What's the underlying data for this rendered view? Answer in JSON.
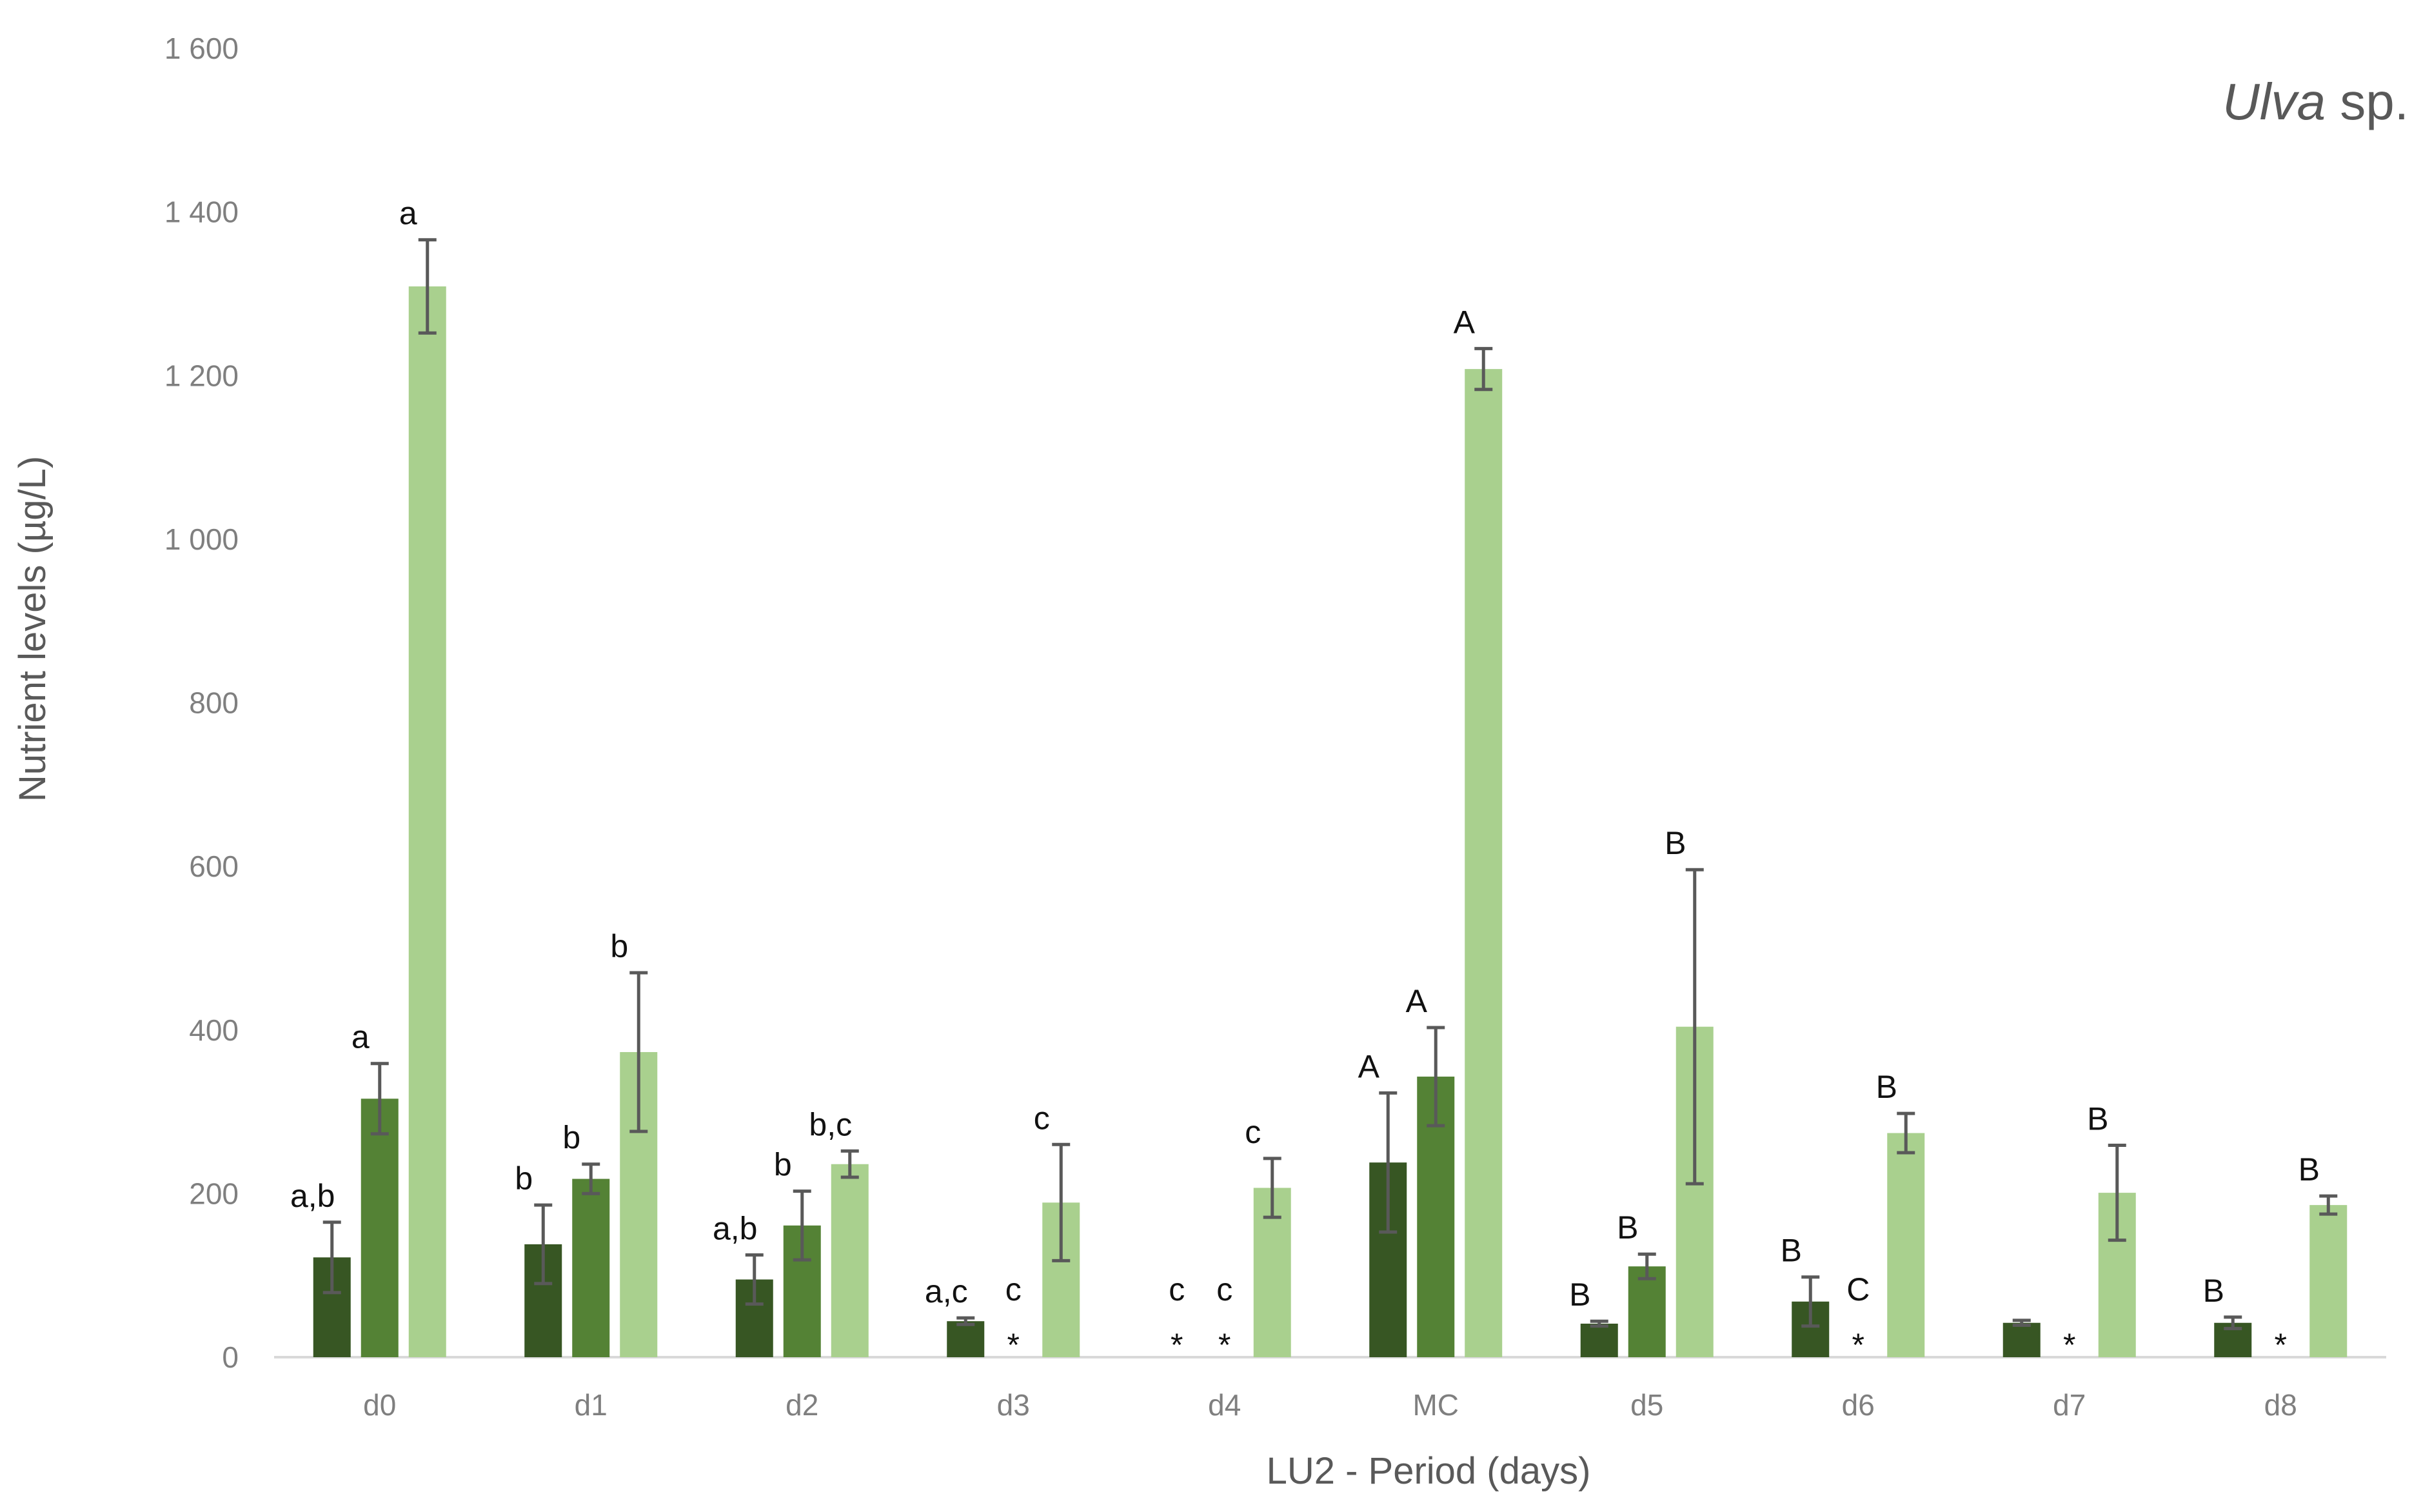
{
  "chart_data": {
    "type": "bar",
    "title_italic": "Ulva",
    "title_rest": " sp.",
    "xlabel": "LU2 - Period (days)",
    "ylabel": "Nutrient levels (µg/L)",
    "ylim": [
      0,
      1600
    ],
    "yticks": [
      {
        "value": 0,
        "label": "0"
      },
      {
        "value": 200,
        "label": "200"
      },
      {
        "value": 400,
        "label": "400"
      },
      {
        "value": 600,
        "label": "600"
      },
      {
        "value": 800,
        "label": "800"
      },
      {
        "value": 1000,
        "label": "1 000"
      },
      {
        "value": 1200,
        "label": "1 200"
      },
      {
        "value": 1400,
        "label": "1 400"
      },
      {
        "value": 1600,
        "label": "1 600"
      }
    ],
    "grid": false,
    "legend": "none",
    "categories": [
      "d0",
      "d1",
      "d2",
      "d3",
      "d4",
      "MC",
      "d5",
      "d6",
      "d7",
      "d8"
    ],
    "series": [
      {
        "color": "#375623",
        "values": [
          122,
          138,
          95,
          44,
          null,
          238,
          41,
          68,
          42,
          42
        ],
        "errors": [
          43,
          48,
          30,
          4,
          null,
          85,
          3,
          30,
          3,
          7
        ],
        "labels": [
          "a,b",
          "b",
          "a,b",
          "a,c",
          "c",
          "A",
          "B",
          "B",
          "",
          "B"
        ]
      },
      {
        "color": "#548235",
        "values": [
          316,
          218,
          161,
          null,
          null,
          343,
          111,
          null,
          null,
          null
        ],
        "errors": [
          43,
          18,
          42,
          null,
          null,
          60,
          15,
          null,
          null,
          null
        ],
        "labels": [
          "a",
          "b",
          "b",
          "c",
          "c",
          "A",
          "B",
          "C",
          "",
          ""
        ]
      },
      {
        "color": "#a9d08e",
        "values": [
          1309,
          373,
          236,
          189,
          207,
          1208,
          404,
          274,
          201,
          186
        ],
        "errors": [
          57,
          97,
          16,
          71,
          36,
          25,
          192,
          24,
          58,
          11
        ],
        "labels": [
          "a",
          "b",
          "b,c",
          "c",
          "c",
          "A",
          "B",
          "B",
          "B",
          "B"
        ]
      }
    ],
    "missing_marker": "*"
  }
}
